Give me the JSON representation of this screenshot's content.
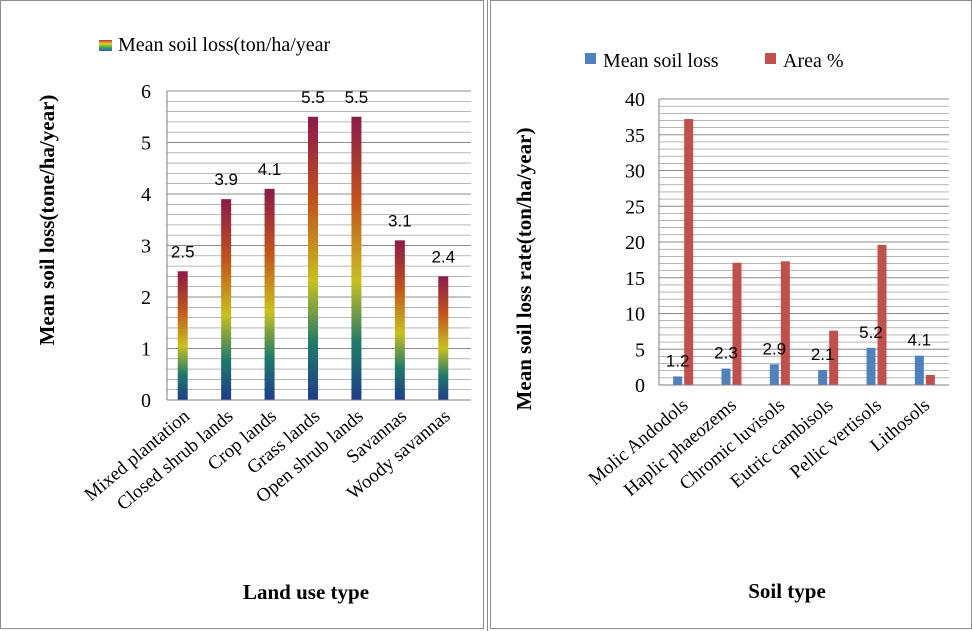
{
  "colors": {
    "grid": "#8c8c8c",
    "axis": "#7f7f7f",
    "series_blue": "#4f81bd",
    "series_red": "#c0504d",
    "rainbow_top": "#8b1a4a",
    "rainbow_mid": "#c9c020",
    "rainbow_bottom": "#1f3d8a"
  },
  "chart_data": [
    {
      "type": "bar",
      "title": "",
      "legend": {
        "entries": [
          "Mean soil loss(ton/ha/year"
        ],
        "position": "top"
      },
      "xlabel": "Land use type",
      "ylabel": "Mean soil loss(tone/ha/year)",
      "ylim": [
        0,
        6
      ],
      "yticks": [
        "0",
        "1",
        "2",
        "3",
        "4",
        "5",
        "6"
      ],
      "grid": true,
      "categories": [
        "Mixed plantation",
        "Closed shrub lands",
        "Crop lands",
        "Grass lands",
        "Open shrub lands",
        "Savannas",
        "Woody savannas"
      ],
      "series": [
        {
          "name": "Mean soil loss(ton/ha/year",
          "values": [
            2.5,
            3.9,
            4.1,
            5.5,
            5.5,
            3.1,
            2.4
          ]
        }
      ],
      "data_labels": [
        "2.5",
        "3.9",
        "4.1",
        "5.5",
        "5.5",
        "3.1",
        "2.4"
      ]
    },
    {
      "type": "bar",
      "title": "",
      "legend": {
        "entries": [
          "Mean soil loss",
          "Area %"
        ],
        "position": "top"
      },
      "xlabel": "Soil type",
      "ylabel": "Mean soil loss rate(ton/ha/year)",
      "ylim": [
        0,
        40
      ],
      "yticks": [
        "0",
        "5",
        "10",
        "15",
        "20",
        "25",
        "30",
        "35",
        "40"
      ],
      "grid": true,
      "categories": [
        "Molic Andodols",
        "Haplic phaeozems",
        "Chromic luvisols",
        "Eutric cambisols",
        "Pellic vertisols",
        "Lithosols"
      ],
      "series": [
        {
          "name": "Mean soil loss",
          "values": [
            1.2,
            2.3,
            2.9,
            2.1,
            5.2,
            4.1
          ]
        },
        {
          "name": "Area %",
          "values": [
            37.2,
            17.1,
            17.3,
            7.6,
            19.6,
            1.4
          ]
        }
      ],
      "data_labels": [
        "1.2",
        "2.3",
        "2.9",
        "2.1",
        "5.2",
        "4.1"
      ]
    }
  ]
}
